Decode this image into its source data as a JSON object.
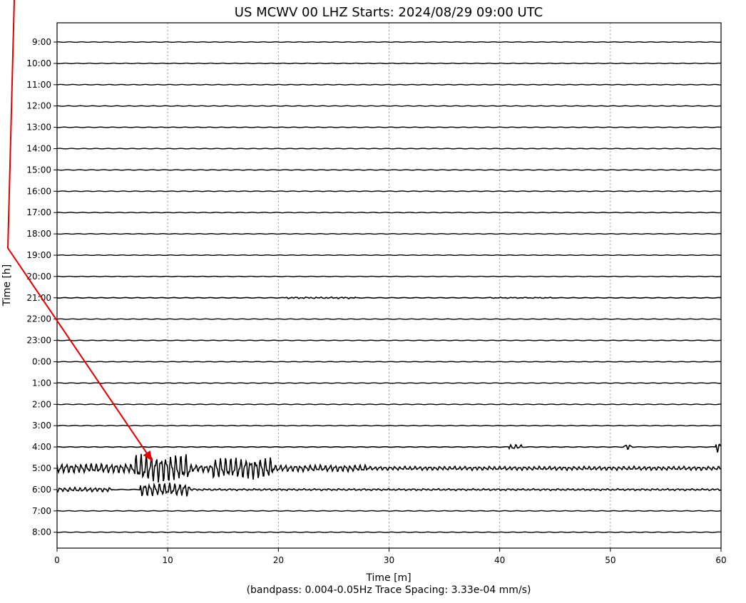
{
  "chart_data": {
    "type": "line",
    "title": "US MCWV 00 LHZ  Starts: 2024/08/29 09:00 UTC",
    "xlabel": "Time [m]",
    "xlabel_note": "(bandpass: 0.004-0.05Hz  Trace Spacing: 3.33e-04 mm/s)",
    "ylabel": "Time [h]",
    "xlim": [
      0,
      60
    ],
    "x_ticks": [
      "0",
      "10",
      "20",
      "30",
      "40",
      "50",
      "60"
    ],
    "grid": "vertical-dotted",
    "hour_labels": [
      "9:00",
      "10:00",
      "11:00",
      "12:00",
      "13:00",
      "14:00",
      "15:00",
      "16:00",
      "17:00",
      "18:00",
      "19:00",
      "20:00",
      "21:00",
      "22:00",
      "23:00",
      "0:00",
      "1:00",
      "2:00",
      "3:00",
      "4:00",
      "5:00",
      "6:00",
      "7:00",
      "8:00"
    ],
    "traces": [
      {
        "hour": "21:00",
        "bursts": [
          {
            "start": 20.5,
            "end": 27,
            "amp": 0.07
          },
          {
            "start": 39,
            "end": 45,
            "amp": 0.04
          }
        ]
      },
      {
        "hour": "4:00",
        "bursts": [
          {
            "start": 40.8,
            "end": 42,
            "amp": 0.25
          },
          {
            "start": 51.2,
            "end": 52,
            "amp": 0.3
          },
          {
            "start": 59.5,
            "end": 60,
            "amp": 0.55
          }
        ]
      },
      {
        "hour": "5:00",
        "bursts": [
          {
            "start": 0,
            "end": 7,
            "amp": 0.5
          },
          {
            "start": 7,
            "end": 12,
            "amp": 1.5
          },
          {
            "start": 12,
            "end": 14,
            "amp": 0.4
          },
          {
            "start": 14,
            "end": 19.5,
            "amp": 1.15
          },
          {
            "start": 19.5,
            "end": 28,
            "amp": 0.35
          },
          {
            "start": 28,
            "end": 60,
            "amp": 0.2
          }
        ]
      },
      {
        "hour": "6:00",
        "bursts": [
          {
            "start": 0,
            "end": 5,
            "amp": 0.22
          },
          {
            "start": 7.5,
            "end": 12,
            "amp": 0.7
          },
          {
            "start": 12,
            "end": 60,
            "amp": 0.08
          }
        ]
      }
    ],
    "annotation": {
      "type": "arrow",
      "color": "#e00000",
      "target_x": 8.6,
      "target_hour": "5:00"
    }
  }
}
